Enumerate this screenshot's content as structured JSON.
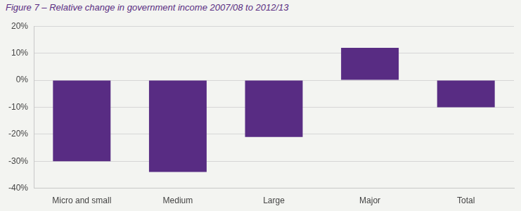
{
  "chart_data": {
    "type": "bar",
    "title": "Figure 7 – Relative change in government income 2007/08 to 2012/13",
    "categories": [
      "Micro and small",
      "Medium",
      "Large",
      "Major",
      "Total"
    ],
    "values": [
      -30,
      -34,
      -21,
      12,
      -10
    ],
    "color": "#582c83",
    "ylim": [
      -40,
      20
    ],
    "yticks": [
      {
        "value": -40,
        "label": "-40%"
      },
      {
        "value": -30,
        "label": "-30%"
      },
      {
        "value": -20,
        "label": "-20%"
      },
      {
        "value": -10,
        "label": "-10%"
      },
      {
        "value": 0,
        "label": "0%"
      },
      {
        "value": 10,
        "label": "10%"
      },
      {
        "value": 20,
        "label": "20%"
      }
    ],
    "grid": true
  }
}
